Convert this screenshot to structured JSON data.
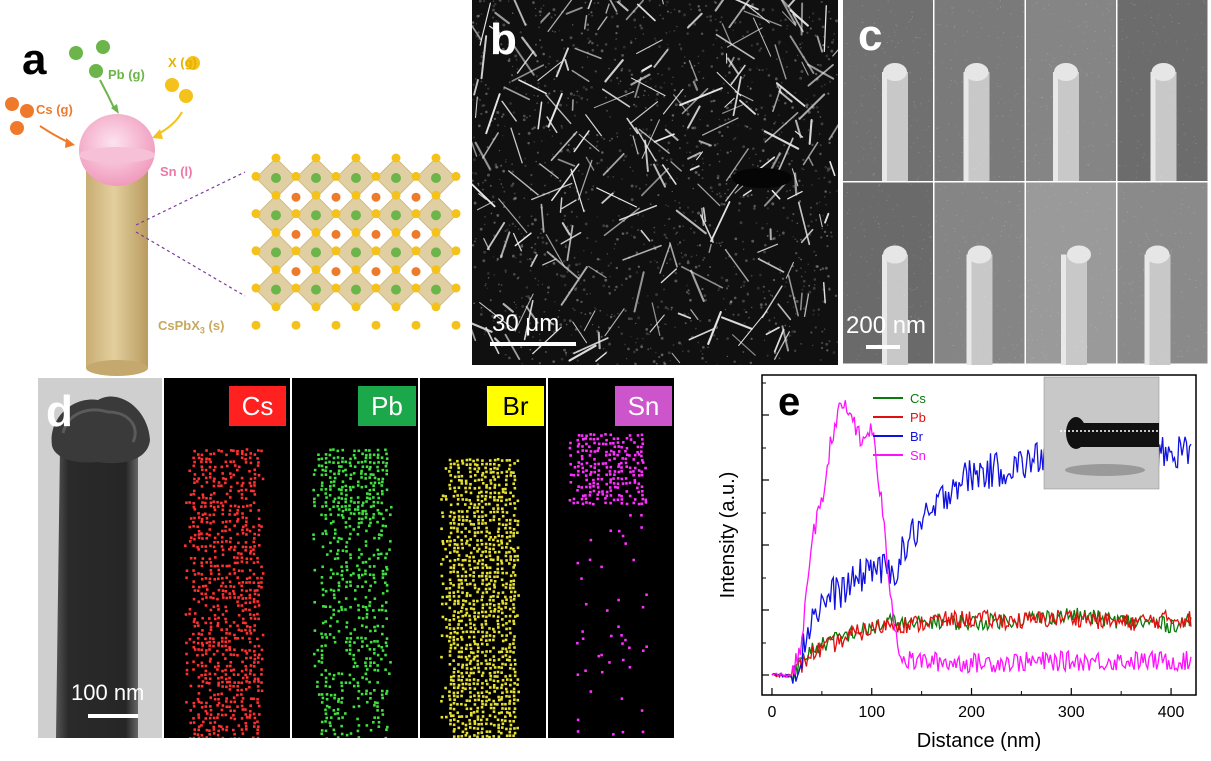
{
  "panel_labels": {
    "a": "a",
    "b": "b",
    "c": "c",
    "d": "d",
    "e": "e"
  },
  "panel_a": {
    "cs_gas": "Cs (g)",
    "pb_gas": "Pb (g)",
    "x_gas": "X (g)",
    "sn_liquid": "Sn (l)",
    "wire_label_main": "CsPbX",
    "wire_label_sub": "3",
    "wire_label_end": " (s)",
    "colors": {
      "cs": "#f07a2c",
      "pb": "#6bb54a",
      "x": "#f5c21b",
      "sn": "#f4a7c3",
      "wire": "#d8c08a"
    }
  },
  "panel_b": {
    "scale_bar": "30 μm"
  },
  "panel_c": {
    "scale_bar": "200 nm"
  },
  "panel_d": {
    "scale_bar": "100 nm",
    "maps": [
      {
        "label": "Cs",
        "color": "#ff2020",
        "dot": "#ff3030"
      },
      {
        "label": "Pb",
        "color": "#1aa84a",
        "dot": "#40e040"
      },
      {
        "label": "Br",
        "color": "#ffff00",
        "dot": "#e6e030"
      },
      {
        "label": "Sn",
        "color": "#cc55cc",
        "dot": "#ff30ff"
      }
    ]
  },
  "chart_data": {
    "type": "line",
    "xlabel": "Distance (nm)",
    "ylabel": "Intensity (a.u.)",
    "xlim": [
      -10,
      425
    ],
    "xticks": [
      0,
      100,
      200,
      300,
      400
    ],
    "legend_position": "top-left",
    "series": [
      {
        "name": "Cs",
        "color": "#0a7a0a",
        "x": [
          0,
          20,
          30,
          40,
          60,
          80,
          100,
          120,
          140,
          160,
          200,
          250,
          300,
          350,
          400,
          420
        ],
        "y": [
          0.05,
          0.05,
          0.12,
          0.18,
          0.22,
          0.26,
          0.28,
          0.32,
          0.3,
          0.32,
          0.31,
          0.33,
          0.35,
          0.32,
          0.3,
          0.32
        ]
      },
      {
        "name": "Pb",
        "color": "#e01010",
        "x": [
          0,
          20,
          30,
          40,
          60,
          80,
          100,
          120,
          140,
          160,
          200,
          250,
          300,
          350,
          400,
          420
        ],
        "y": [
          0.05,
          0.05,
          0.1,
          0.16,
          0.2,
          0.25,
          0.28,
          0.31,
          0.3,
          0.32,
          0.33,
          0.32,
          0.34,
          0.31,
          0.33,
          0.33
        ]
      },
      {
        "name": "Br",
        "color": "#1010e0",
        "x": [
          0,
          20,
          30,
          40,
          60,
          80,
          100,
          120,
          140,
          160,
          180,
          200,
          250,
          300,
          350,
          400,
          420
        ],
        "y": [
          0.05,
          0.05,
          0.15,
          0.35,
          0.45,
          0.5,
          0.6,
          0.55,
          0.75,
          0.85,
          1.0,
          1.05,
          1.1,
          1.2,
          1.15,
          1.15,
          1.2
        ]
      },
      {
        "name": "Sn",
        "color": "#ff10ff",
        "x": [
          0,
          20,
          30,
          40,
          50,
          60,
          70,
          80,
          90,
          100,
          110,
          120,
          130,
          140,
          200,
          300,
          400,
          420
        ],
        "y": [
          0.05,
          0.05,
          0.2,
          0.75,
          0.9,
          1.25,
          1.4,
          1.35,
          1.2,
          1.3,
          0.9,
          0.4,
          0.12,
          0.12,
          0.11,
          0.12,
          0.12,
          0.12
        ]
      }
    ]
  }
}
